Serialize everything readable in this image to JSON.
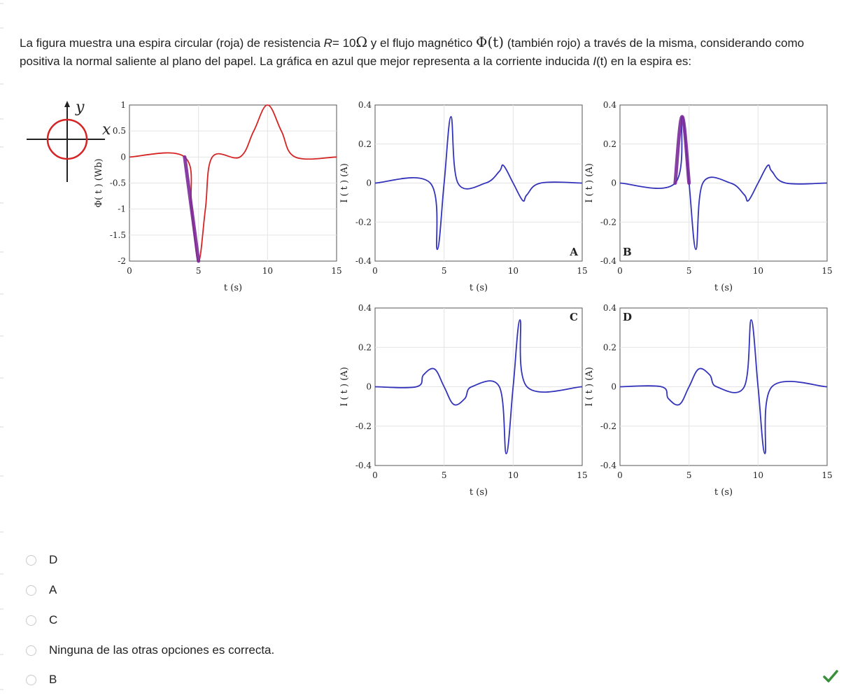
{
  "question": {
    "part1": "La figura muestra una espira circular (roja) de resistencia ",
    "R_var": "R",
    "part2": "= 10",
    "ohm": "Ω",
    "part3": " y el flujo magnético ",
    "phi": "Φ(t)",
    "part4": " (también rojo) a través de la misma, considerando como positiva la normal saliente al plano del papel. La gráfica en azul que mejor representa a la corriente inducida ",
    "I_var": "I",
    "I_arg": "(t)",
    "part5": " en la espira es:"
  },
  "figure": {
    "axes_y": "y",
    "axes_x": "x",
    "flux_ylabel": "Φ( t ) (Wb)",
    "current_ylabel": "I ( t ) (A)",
    "xlabel": "t (s)"
  },
  "chart_data": [
    {
      "type": "line",
      "id": "flux",
      "xlabel": "t (s)",
      "ylabel": "Φ( t ) (Wb)",
      "xlim": [
        0,
        15
      ],
      "ylim": [
        -2,
        1
      ],
      "xticks": [
        0,
        5,
        10,
        15
      ],
      "yticks": [
        1,
        0.5,
        0,
        -0.5,
        -1,
        -1.5,
        -2
      ],
      "grid": true,
      "color": "#d62424",
      "series": [
        {
          "x": [
            0,
            4,
            4.5,
            5,
            5.5,
            6,
            8,
            9,
            10,
            11,
            12,
            15
          ],
          "y": [
            0,
            0,
            -1,
            -2,
            -1,
            0,
            0,
            0.5,
            1,
            0.5,
            0,
            0
          ]
        }
      ],
      "highlight": {
        "color": "#7a2a9a",
        "x": [
          4,
          5
        ]
      }
    },
    {
      "type": "line",
      "id": "A",
      "label": "A",
      "xlabel": "t (s)",
      "ylabel": "I ( t ) (A)",
      "xlim": [
        0,
        15
      ],
      "ylim": [
        -0.4,
        0.4
      ],
      "xticks": [
        0,
        5,
        10,
        15
      ],
      "yticks": [
        0.4,
        0.2,
        0,
        -0.2,
        -0.4
      ],
      "grid": true,
      "color": "#3333bb",
      "series": [
        {
          "x": [
            0,
            4,
            4.5,
            5,
            5.5,
            6,
            8,
            9,
            9.3,
            10,
            10.7,
            11,
            12,
            15
          ],
          "y": [
            0,
            0,
            -0.34,
            0,
            0.34,
            0,
            0,
            0.06,
            0.09,
            0,
            -0.09,
            -0.06,
            0,
            0
          ]
        }
      ]
    },
    {
      "type": "line",
      "id": "B",
      "label": "B",
      "xlabel": "t (s)",
      "ylabel": "I ( t ) (A)",
      "xlim": [
        0,
        15
      ],
      "ylim": [
        -0.4,
        0.4
      ],
      "xticks": [
        0,
        5,
        10,
        15
      ],
      "yticks": [
        0.4,
        0.2,
        0,
        -0.2,
        -0.4
      ],
      "grid": true,
      "color": "#3333bb",
      "series": [
        {
          "x": [
            0,
            4,
            4.5,
            5,
            5.5,
            6,
            8,
            9,
            9.3,
            10,
            10.7,
            11,
            12,
            15
          ],
          "y": [
            0,
            0,
            0.34,
            0,
            -0.34,
            0,
            0,
            -0.06,
            -0.09,
            0,
            0.09,
            0.06,
            0,
            0
          ]
        }
      ],
      "highlight": {
        "color": "#7a2a9a",
        "x": [
          4,
          5
        ]
      }
    },
    {
      "type": "line",
      "id": "C",
      "label": "C",
      "xlabel": "t (s)",
      "ylabel": "I ( t ) (A)",
      "xlim": [
        0,
        15
      ],
      "ylim": [
        -0.4,
        0.4
      ],
      "xticks": [
        0,
        5,
        10,
        15
      ],
      "yticks": [
        0.4,
        0.2,
        0,
        -0.2,
        -0.4
      ],
      "grid": true,
      "color": "#3333bb",
      "series": [
        {
          "x": [
            0,
            3,
            3.5,
            4.3,
            5,
            5.7,
            6.5,
            7,
            9,
            9.5,
            10,
            10.5,
            11,
            15
          ],
          "y": [
            0,
            0,
            0.06,
            0.09,
            0,
            -0.09,
            -0.06,
            0,
            0,
            -0.34,
            0,
            0.34,
            0,
            0
          ]
        }
      ]
    },
    {
      "type": "line",
      "id": "D",
      "label": "D",
      "xlabel": "t (s)",
      "ylabel": "I ( t ) (A)",
      "xlim": [
        0,
        15
      ],
      "ylim": [
        -0.4,
        0.4
      ],
      "xticks": [
        0,
        5,
        10,
        15
      ],
      "yticks": [
        0.4,
        0.2,
        0,
        -0.2,
        -0.4
      ],
      "grid": true,
      "color": "#3333bb",
      "series": [
        {
          "x": [
            0,
            3,
            3.5,
            4.3,
            5,
            5.7,
            6.5,
            7,
            9,
            9.5,
            10,
            10.5,
            11,
            15
          ],
          "y": [
            0,
            0,
            -0.06,
            -0.09,
            0,
            0.09,
            0.06,
            0,
            0,
            0.34,
            0,
            -0.34,
            0,
            0
          ]
        }
      ]
    }
  ],
  "options": [
    {
      "label": "D"
    },
    {
      "label": "A"
    },
    {
      "label": "C"
    },
    {
      "label": "Ninguna de las otras opciones es correcta."
    },
    {
      "label": "B"
    }
  ],
  "status": {
    "icon": "checkmark-icon",
    "color": "#3a8f3a"
  }
}
